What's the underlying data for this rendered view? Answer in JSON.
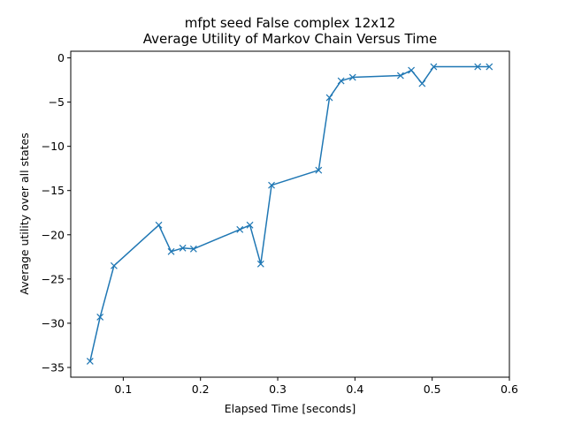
{
  "chart_data": {
    "type": "line",
    "title_lines": [
      "mfpt seed False complex 12x12",
      "Average Utility of Markov Chain Versus Time"
    ],
    "xlabel": "Elapsed Time [seconds]",
    "ylabel": "Average utility over all states",
    "xlim": [
      0.032,
      0.6
    ],
    "ylim": [
      -36.1,
      0.75
    ],
    "xticks": [
      0.1,
      0.2,
      0.3,
      0.4,
      0.5,
      0.6
    ],
    "xtick_labels": [
      "0.1",
      "0.2",
      "0.3",
      "0.4",
      "0.5",
      "0.6"
    ],
    "yticks": [
      0,
      -5,
      -10,
      -15,
      -20,
      -25,
      -30,
      -35
    ],
    "ytick_labels": [
      "0",
      "−5",
      "−10",
      "−15",
      "−20",
      "−25",
      "−30",
      "−35"
    ],
    "grid": false,
    "series": [
      {
        "color": "#1f77b4",
        "marker": "x",
        "x": [
          0.057,
          0.07,
          0.088,
          0.146,
          0.162,
          0.177,
          0.191,
          0.251,
          0.264,
          0.278,
          0.292,
          0.353,
          0.367,
          0.382,
          0.397,
          0.459,
          0.473,
          0.487,
          0.502,
          0.559,
          0.574
        ],
        "y": [
          -34.3,
          -29.3,
          -23.5,
          -18.9,
          -21.9,
          -21.5,
          -21.6,
          -19.4,
          -18.9,
          -23.3,
          -14.4,
          -12.7,
          -4.5,
          -2.6,
          -2.2,
          -2.0,
          -1.4,
          -2.9,
          -1.0,
          -1.0,
          -1.0
        ]
      }
    ]
  }
}
